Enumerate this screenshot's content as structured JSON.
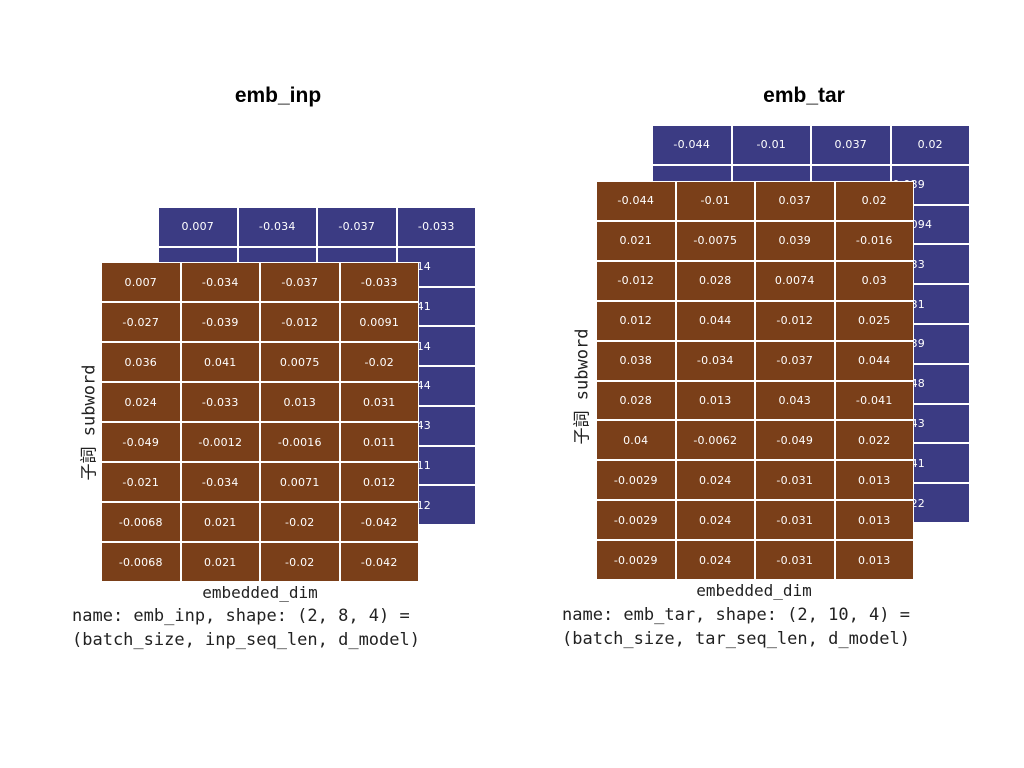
{
  "left": {
    "title": "emb_inp",
    "back_top_row": [
      "0.007",
      "-0.034",
      "-0.037",
      "-0.033"
    ],
    "back_right_col": [
      "0.014",
      "0.041",
      "0.014",
      "0.044",
      "0.043",
      "0.011",
      "0.012"
    ],
    "front": [
      [
        "0.007",
        "-0.034",
        "-0.037",
        "-0.033"
      ],
      [
        "-0.027",
        "-0.039",
        "-0.012",
        "0.0091"
      ],
      [
        "0.036",
        "0.041",
        "0.0075",
        "-0.02"
      ],
      [
        "0.024",
        "-0.033",
        "0.013",
        "0.031"
      ],
      [
        "-0.049",
        "-0.0012",
        "-0.0016",
        "0.011"
      ],
      [
        "-0.021",
        "-0.034",
        "0.0071",
        "0.012"
      ],
      [
        "-0.0068",
        "0.021",
        "-0.02",
        "-0.042"
      ],
      [
        "-0.0068",
        "0.021",
        "-0.02",
        "-0.042"
      ]
    ],
    "ylabel": "子詞 subword",
    "xlabel": "embedded_dim",
    "caption_line1": "name: emb_inp, shape: (2, 8, 4) =",
    "caption_line2": "(batch_size, inp_seq_len, d_model)"
  },
  "right": {
    "title": "emb_tar",
    "back_top_row": [
      "-0.044",
      "-0.01",
      "0.037",
      "0.02"
    ],
    "back_right_col": [
      "0.039",
      "0.0094",
      "0.033",
      "0.031",
      "0.039",
      "0.048",
      "0.043",
      "0.041",
      "0.022"
    ],
    "front": [
      [
        "-0.044",
        "-0.01",
        "0.037",
        "0.02"
      ],
      [
        "0.021",
        "-0.0075",
        "0.039",
        "-0.016"
      ],
      [
        "-0.012",
        "0.028",
        "0.0074",
        "0.03"
      ],
      [
        "0.012",
        "0.044",
        "-0.012",
        "0.025"
      ],
      [
        "0.038",
        "-0.034",
        "-0.037",
        "0.044"
      ],
      [
        "0.028",
        "0.013",
        "0.043",
        "-0.041"
      ],
      [
        "0.04",
        "-0.0062",
        "-0.049",
        "0.022"
      ],
      [
        "-0.0029",
        "0.024",
        "-0.031",
        "0.013"
      ],
      [
        "-0.0029",
        "0.024",
        "-0.031",
        "0.013"
      ],
      [
        "-0.0029",
        "0.024",
        "-0.031",
        "0.013"
      ]
    ],
    "ylabel": "子詞 subword",
    "xlabel": "embedded_dim",
    "caption_line1": "name: emb_tar, shape: (2, 10, 4) =",
    "caption_line2": "(batch_size, tar_seq_len, d_model)"
  }
}
